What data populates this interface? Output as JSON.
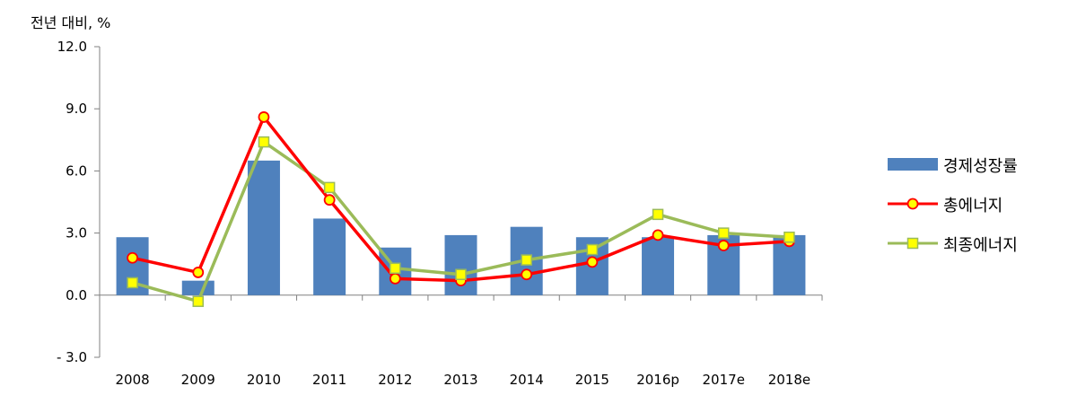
{
  "unit_label": "전년 대비, %",
  "colors": {
    "bar": "#4F81BD",
    "total_energy": "#FF0000",
    "total_energy_marker": "#FFFF00",
    "final_energy": "#9BBB59",
    "final_energy_marker": "#FFFF00"
  },
  "chart_data": {
    "type": "bar",
    "categories": [
      "2008",
      "2009",
      "2010",
      "2011",
      "2012",
      "2013",
      "2014",
      "2015",
      "2016p",
      "2017e",
      "2018e"
    ],
    "ylim": [
      -3.0,
      12.0
    ],
    "yticks": [
      "- 3.0",
      "0.0",
      "3.0",
      "6.0",
      "9.0",
      "12.0"
    ],
    "ytick_values": [
      -3.0,
      0.0,
      3.0,
      6.0,
      9.0,
      12.0
    ],
    "ylabel": "전년 대비, %",
    "legend_position": "right",
    "series": [
      {
        "name": "경제성장률",
        "type": "bar",
        "values": [
          2.8,
          0.7,
          6.5,
          3.7,
          2.3,
          2.9,
          3.3,
          2.8,
          2.8,
          2.9,
          2.9
        ]
      },
      {
        "name": "총에너지",
        "type": "line",
        "marker": "circle",
        "values": [
          1.8,
          1.1,
          8.6,
          4.6,
          0.8,
          0.7,
          1.0,
          1.6,
          2.9,
          2.4,
          2.6
        ]
      },
      {
        "name": "최종에너지",
        "type": "line",
        "marker": "square",
        "values": [
          0.6,
          -0.3,
          7.4,
          5.2,
          1.3,
          1.0,
          1.7,
          2.2,
          3.9,
          3.0,
          2.8
        ]
      }
    ]
  }
}
